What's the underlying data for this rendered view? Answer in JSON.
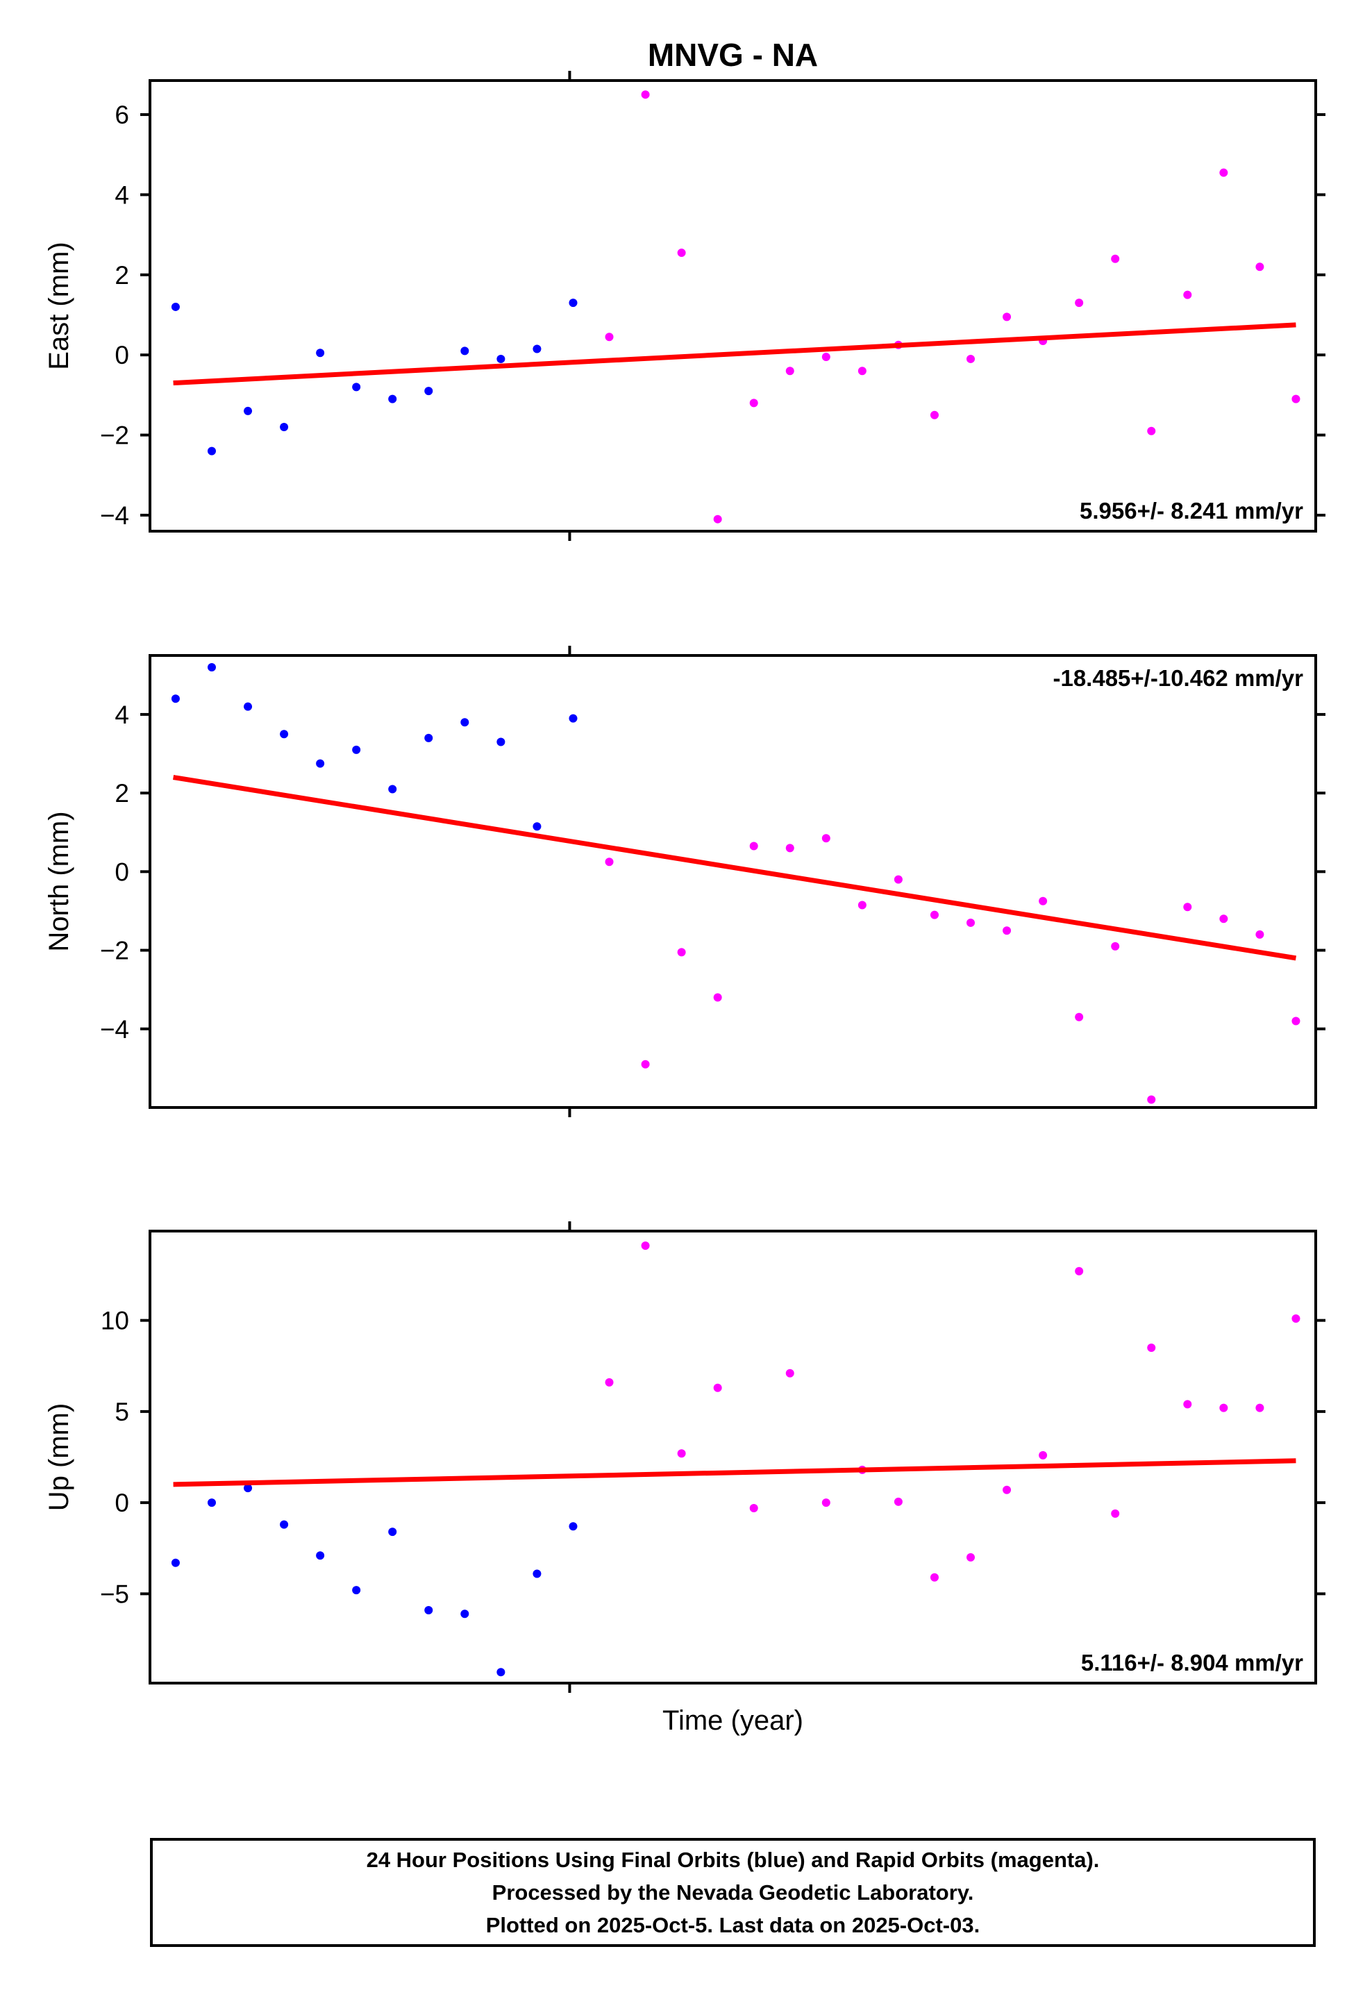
{
  "title": "MNVG - NA",
  "xlabel": "Time (year)",
  "caption": {
    "line1": "24 Hour Positions Using Final Orbits (blue) and Rapid Orbits (magenta).",
    "line2": "Processed by the Nevada Geodetic Laboratory.",
    "line3": "Plotted on 2025-Oct-5. Last data on 2025-Oct-03."
  },
  "colors": {
    "final": "#0000ff",
    "rapid": "#ff00ff",
    "trend": "#ff0000",
    "frame": "#000000"
  },
  "legend": [
    {
      "name": "Final Orbits",
      "color": "#0000ff"
    },
    {
      "name": "Rapid Orbits",
      "color": "#ff00ff"
    }
  ],
  "chart_data": [
    {
      "type": "scatter",
      "ylabel": "East (mm)",
      "ylim": [
        -4.4,
        6.85
      ],
      "yticks": [
        6,
        4,
        2,
        0,
        -2,
        -4
      ],
      "xticks": [
        0.36
      ],
      "rate_text": "5.956+/- 8.241 mm/yr",
      "annotation": {
        "text": "5.956+/- 8.241 mm/yr",
        "pos": "bottom-right"
      },
      "trend_line": {
        "x0": 0.02,
        "y0": -0.7,
        "x1": 0.983,
        "y1": 0.75
      },
      "series": [
        {
          "name": "Final Orbits",
          "color_key": "final",
          "points": [
            [
              0.022,
              1.2
            ],
            [
              0.053,
              -2.4
            ],
            [
              0.084,
              -1.4
            ],
            [
              0.115,
              -1.8
            ],
            [
              0.146,
              0.05
            ],
            [
              0.177,
              -0.8
            ],
            [
              0.208,
              -1.1
            ],
            [
              0.239,
              -0.9
            ],
            [
              0.27,
              0.1
            ],
            [
              0.301,
              -0.1
            ],
            [
              0.332,
              0.15
            ],
            [
              0.363,
              1.3
            ]
          ]
        },
        {
          "name": "Rapid Orbits",
          "color_key": "rapid",
          "points": [
            [
              0.394,
              0.45
            ],
            [
              0.425,
              6.5
            ],
            [
              0.456,
              2.55
            ],
            [
              0.487,
              -4.1
            ],
            [
              0.518,
              -1.2
            ],
            [
              0.549,
              -0.4
            ],
            [
              0.58,
              -0.05
            ],
            [
              0.611,
              -0.4
            ],
            [
              0.642,
              0.25
            ],
            [
              0.673,
              -1.5
            ],
            [
              0.704,
              -0.1
            ],
            [
              0.735,
              0.95
            ],
            [
              0.766,
              0.35
            ],
            [
              0.797,
              1.3
            ],
            [
              0.828,
              2.4
            ],
            [
              0.859,
              -1.9
            ],
            [
              0.89,
              1.5
            ],
            [
              0.921,
              4.55
            ],
            [
              0.952,
              2.2
            ],
            [
              0.983,
              -1.1
            ]
          ]
        }
      ]
    },
    {
      "type": "scatter",
      "ylabel": "North (mm)",
      "ylim": [
        -6.0,
        5.5
      ],
      "yticks": [
        4,
        2,
        0,
        -2,
        -4
      ],
      "xticks": [
        0.36
      ],
      "rate_text": "-18.485+/-10.462 mm/yr",
      "annotation": {
        "text": "-18.485+/-10.462 mm/yr",
        "pos": "top-right"
      },
      "trend_line": {
        "x0": 0.02,
        "y0": 2.4,
        "x1": 0.983,
        "y1": -2.2
      },
      "series": [
        {
          "name": "Final Orbits",
          "color_key": "final",
          "points": [
            [
              0.022,
              4.4
            ],
            [
              0.053,
              5.2
            ],
            [
              0.084,
              4.2
            ],
            [
              0.115,
              3.5
            ],
            [
              0.146,
              2.75
            ],
            [
              0.177,
              3.1
            ],
            [
              0.208,
              2.1
            ],
            [
              0.239,
              3.4
            ],
            [
              0.27,
              3.8
            ],
            [
              0.301,
              3.3
            ],
            [
              0.332,
              1.15
            ],
            [
              0.363,
              3.9
            ]
          ]
        },
        {
          "name": "Rapid Orbits",
          "color_key": "rapid",
          "points": [
            [
              0.394,
              0.25
            ],
            [
              0.425,
              -4.9
            ],
            [
              0.456,
              -2.05
            ],
            [
              0.487,
              -3.2
            ],
            [
              0.518,
              0.65
            ],
            [
              0.549,
              0.6
            ],
            [
              0.58,
              0.85
            ],
            [
              0.611,
              -0.85
            ],
            [
              0.642,
              -0.2
            ],
            [
              0.673,
              -1.1
            ],
            [
              0.704,
              -1.3
            ],
            [
              0.735,
              -1.5
            ],
            [
              0.766,
              -0.75
            ],
            [
              0.797,
              -3.7
            ],
            [
              0.828,
              -1.9
            ],
            [
              0.859,
              -5.8
            ],
            [
              0.89,
              -0.9
            ],
            [
              0.921,
              -1.2
            ],
            [
              0.952,
              -1.6
            ],
            [
              0.983,
              -3.8
            ]
          ]
        }
      ]
    },
    {
      "type": "scatter",
      "ylabel": "Up (mm)",
      "ylim": [
        -9.9,
        14.9
      ],
      "yticks": [
        10,
        5,
        0,
        -5
      ],
      "xticks": [
        0.36
      ],
      "rate_text": "5.116+/- 8.904 mm/yr",
      "annotation": {
        "text": "5.116+/- 8.904 mm/yr",
        "pos": "bottom-right"
      },
      "trend_line": {
        "x0": 0.02,
        "y0": 1.0,
        "x1": 0.983,
        "y1": 2.3
      },
      "series": [
        {
          "name": "Final Orbits",
          "color_key": "final",
          "points": [
            [
              0.022,
              -3.3
            ],
            [
              0.053,
              0
            ],
            [
              0.084,
              0.8
            ],
            [
              0.115,
              -1.2
            ],
            [
              0.146,
              -2.9
            ],
            [
              0.177,
              -4.8
            ],
            [
              0.208,
              -1.6
            ],
            [
              0.239,
              -5.9
            ],
            [
              0.27,
              -6.1
            ],
            [
              0.301,
              -9.3
            ],
            [
              0.332,
              -3.9
            ],
            [
              0.363,
              -1.3
            ]
          ]
        },
        {
          "name": "Rapid Orbits",
          "color_key": "rapid",
          "points": [
            [
              0.394,
              6.6
            ],
            [
              0.425,
              14.1
            ],
            [
              0.456,
              2.7
            ],
            [
              0.487,
              6.3
            ],
            [
              0.518,
              -0.3
            ],
            [
              0.549,
              7.1
            ],
            [
              0.58,
              0
            ],
            [
              0.611,
              1.8
            ],
            [
              0.642,
              0.05
            ],
            [
              0.673,
              -4.1
            ],
            [
              0.704,
              -3.0
            ],
            [
              0.735,
              0.7
            ],
            [
              0.766,
              2.6
            ],
            [
              0.797,
              12.7
            ],
            [
              0.828,
              -0.6
            ],
            [
              0.859,
              8.5
            ],
            [
              0.89,
              5.4
            ],
            [
              0.921,
              5.2
            ],
            [
              0.952,
              5.2
            ],
            [
              0.983,
              10.1
            ]
          ]
        }
      ]
    }
  ]
}
